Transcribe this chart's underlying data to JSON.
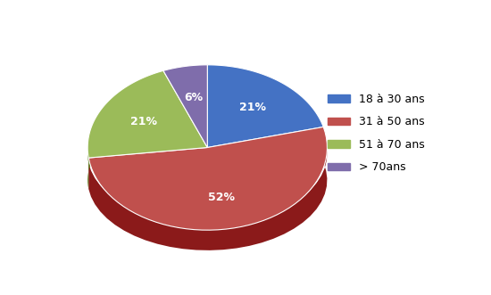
{
  "labels": [
    "18 à 30 ans",
    "31 à 50 ans",
    "51 à 70 ans",
    "> 70ans"
  ],
  "values": [
    21,
    52,
    21,
    6
  ],
  "colors_top": [
    "#4472c4",
    "#c0504d",
    "#9bbb59",
    "#7f6dab"
  ],
  "colors_side": [
    "#2d548a",
    "#8b1a1a",
    "#5a7a1a",
    "#4a3d6e"
  ],
  "pct_labels": [
    "21%",
    "52%",
    "21%",
    "6%"
  ],
  "startangle": 90,
  "background_color": "#ffffff",
  "legend_fontsize": 9
}
